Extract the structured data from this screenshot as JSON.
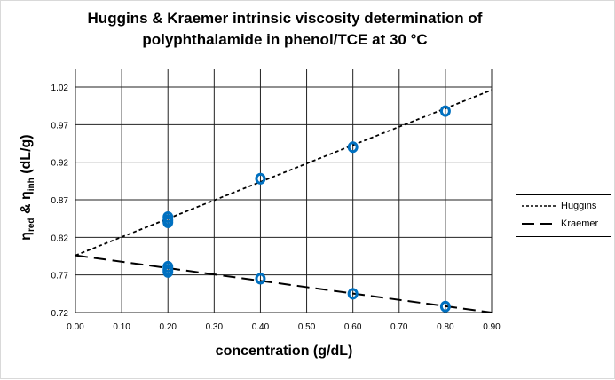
{
  "chart_data": {
    "type": "scatter",
    "title": "Huggins & Kraemer intrinsic viscosity determination of polyphthalamide in phenol/TCE at 30 °C",
    "title_lines": [
      "Huggins & Kraemer intrinsic viscosity determination of",
      "polyphthalamide in phenol/TCE at 30 °C"
    ],
    "xlabel": "concentration (g/dL)",
    "ylabel_parts": {
      "eta": "η",
      "red": "red",
      "amp": " & ",
      "inh": "inh",
      "unit": " (dL/g)"
    },
    "xlim": [
      0,
      0.9
    ],
    "ylim": [
      0.72,
      1.02
    ],
    "xticks": [
      "0.00",
      "0.10",
      "0.20",
      "0.30",
      "0.40",
      "0.50",
      "0.60",
      "0.70",
      "0.80",
      "0.90"
    ],
    "yticks": [
      "0.72",
      "0.77",
      "0.82",
      "0.87",
      "0.92",
      "0.97",
      "1.02"
    ],
    "grid": true,
    "legend_position": "right",
    "marker_color": "#0070c0",
    "points": [
      {
        "x": 0.2,
        "y": 0.847
      },
      {
        "x": 0.2,
        "y": 0.843
      },
      {
        "x": 0.2,
        "y": 0.84
      },
      {
        "x": 0.4,
        "y": 0.898
      },
      {
        "x": 0.6,
        "y": 0.94
      },
      {
        "x": 0.8,
        "y": 0.988
      },
      {
        "x": 0.2,
        "y": 0.781
      },
      {
        "x": 0.2,
        "y": 0.777
      },
      {
        "x": 0.2,
        "y": 0.774
      },
      {
        "x": 0.4,
        "y": 0.765
      },
      {
        "x": 0.6,
        "y": 0.745
      },
      {
        "x": 0.8,
        "y": 0.728
      }
    ],
    "series": [
      {
        "name": "Huggins",
        "style": "dotted",
        "x": [
          0,
          0.9
        ],
        "y": [
          0.796,
          1.016
        ]
      },
      {
        "name": "Kraemer",
        "style": "dashed",
        "x": [
          0,
          0.9
        ],
        "y": [
          0.796,
          0.72
        ]
      }
    ]
  }
}
